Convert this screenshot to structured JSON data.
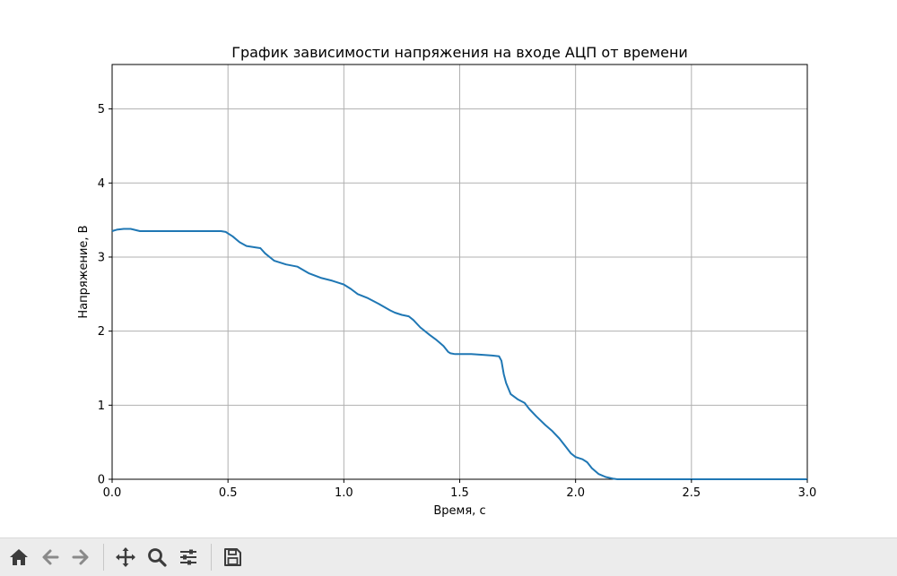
{
  "chart_data": {
    "type": "line",
    "title": "График зависимости напряжения на входе АЦП от времени",
    "xlabel": "Время, с",
    "ylabel": "Напряжение, В",
    "xlim": [
      0.0,
      3.0
    ],
    "ylim": [
      0,
      5.6
    ],
    "x_ticks": [
      0.0,
      0.5,
      1.0,
      1.5,
      2.0,
      2.5,
      3.0
    ],
    "x_tick_labels": [
      "0.0",
      "0.5",
      "1.0",
      "1.5",
      "2.0",
      "2.5",
      "3.0"
    ],
    "y_ticks": [
      0,
      1,
      2,
      3,
      4,
      5
    ],
    "y_tick_labels": [
      "0",
      "1",
      "2",
      "3",
      "4",
      "5"
    ],
    "grid": true,
    "line_color": "#1f77b4",
    "series": [
      {
        "x": [
          0.0,
          0.02,
          0.05,
          0.08,
          0.12,
          0.2,
          0.3,
          0.4,
          0.47,
          0.49,
          0.52,
          0.55,
          0.58,
          0.62,
          0.64,
          0.66,
          0.7,
          0.75,
          0.8,
          0.85,
          0.9,
          0.95,
          0.98,
          1.0,
          1.03,
          1.06,
          1.1,
          1.15,
          1.2,
          1.22,
          1.25,
          1.28,
          1.3,
          1.33,
          1.37,
          1.4,
          1.43,
          1.45,
          1.46,
          1.48,
          1.5,
          1.55,
          1.6,
          1.64,
          1.67,
          1.68,
          1.69,
          1.7,
          1.72,
          1.75,
          1.78,
          1.8,
          1.83,
          1.87,
          1.9,
          1.93,
          1.96,
          1.98,
          2.0,
          2.03,
          2.05,
          2.07,
          2.1,
          2.13,
          2.16,
          2.18,
          2.2,
          2.3,
          2.5,
          2.7,
          3.0
        ],
        "y": [
          3.35,
          3.37,
          3.38,
          3.38,
          3.35,
          3.35,
          3.35,
          3.35,
          3.35,
          3.34,
          3.28,
          3.2,
          3.15,
          3.13,
          3.12,
          3.05,
          2.95,
          2.9,
          2.87,
          2.78,
          2.72,
          2.68,
          2.65,
          2.63,
          2.57,
          2.5,
          2.45,
          2.37,
          2.28,
          2.25,
          2.22,
          2.2,
          2.15,
          2.05,
          1.95,
          1.88,
          1.8,
          1.72,
          1.7,
          1.69,
          1.69,
          1.69,
          1.68,
          1.67,
          1.66,
          1.6,
          1.42,
          1.3,
          1.15,
          1.08,
          1.03,
          0.95,
          0.85,
          0.73,
          0.65,
          0.55,
          0.43,
          0.35,
          0.3,
          0.27,
          0.23,
          0.15,
          0.07,
          0.03,
          0.01,
          0.0,
          0.0,
          0.0,
          0.0,
          0.0,
          0.0
        ]
      }
    ]
  },
  "toolbar": {
    "icons": [
      "home-icon",
      "back-arrow-icon",
      "forward-arrow-icon",
      "pan-icon",
      "zoom-icon",
      "configure-subplots-icon",
      "save-icon"
    ],
    "icon_color": "#3c3c3c",
    "disabled_color": "#8a8a8a"
  }
}
